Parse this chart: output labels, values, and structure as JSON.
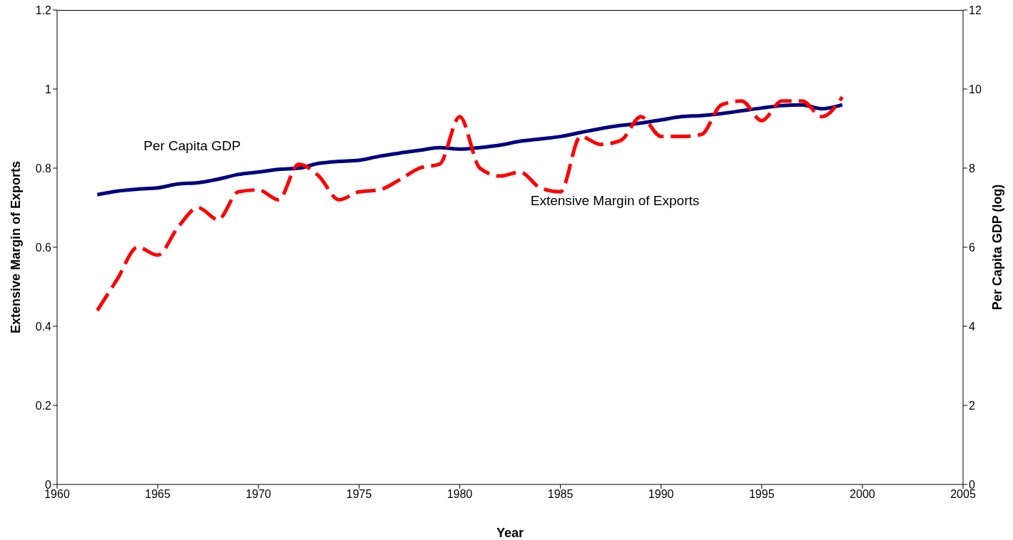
{
  "chart_data": {
    "type": "line",
    "xlabel": "Year",
    "ylabel": "Extensive Margin of Exports",
    "y2label": "Per Capita GDP (log)",
    "x": [
      1962,
      1963,
      1964,
      1965,
      1966,
      1967,
      1968,
      1969,
      1970,
      1971,
      1972,
      1973,
      1974,
      1975,
      1976,
      1977,
      1978,
      1979,
      1980,
      1981,
      1982,
      1983,
      1984,
      1985,
      1986,
      1987,
      1988,
      1989,
      1990,
      1991,
      1992,
      1993,
      1994,
      1995,
      1996,
      1997,
      1998,
      1999
    ],
    "series": [
      {
        "name": "Per Capita GDP",
        "color": "#000080",
        "axis": "y2",
        "line_style": "solid",
        "values": [
          7.33,
          7.42,
          7.47,
          7.5,
          7.6,
          7.63,
          7.72,
          7.84,
          7.9,
          7.97,
          8.0,
          8.12,
          8.17,
          8.2,
          8.3,
          8.38,
          8.45,
          8.52,
          8.48,
          8.52,
          8.58,
          8.68,
          8.74,
          8.8,
          8.9,
          9.0,
          9.08,
          9.14,
          9.22,
          9.3,
          9.33,
          9.38,
          9.45,
          9.52,
          9.58,
          9.6,
          9.5,
          9.6
        ]
      },
      {
        "name": "Extensive Margin of Exports",
        "color": "#ff0000",
        "line_style": "dashed",
        "values": [
          0.44,
          0.52,
          0.6,
          0.58,
          0.65,
          0.7,
          0.67,
          0.74,
          0.745,
          0.72,
          0.81,
          0.78,
          0.72,
          0.74,
          0.745,
          0.77,
          0.8,
          0.81,
          0.93,
          0.8,
          0.78,
          0.79,
          0.75,
          0.74,
          0.88,
          0.86,
          0.87,
          0.93,
          0.88,
          0.88,
          0.885,
          0.96,
          0.97,
          0.92,
          0.97,
          0.97,
          0.93,
          0.98
        ]
      }
    ],
    "xlim": [
      1960,
      2005
    ],
    "xticks": [
      1960,
      1965,
      1970,
      1975,
      1980,
      1985,
      1990,
      1995,
      2000,
      2005
    ],
    "ylim": [
      0,
      1.2
    ],
    "yticks": [
      0,
      0.2,
      0.4,
      0.6,
      0.8,
      1,
      1.2
    ],
    "y2lim": [
      0,
      12
    ],
    "y2ticks": [
      0,
      2,
      4,
      6,
      8,
      10,
      12
    ],
    "grid": false,
    "legend": false,
    "marker": "none"
  }
}
